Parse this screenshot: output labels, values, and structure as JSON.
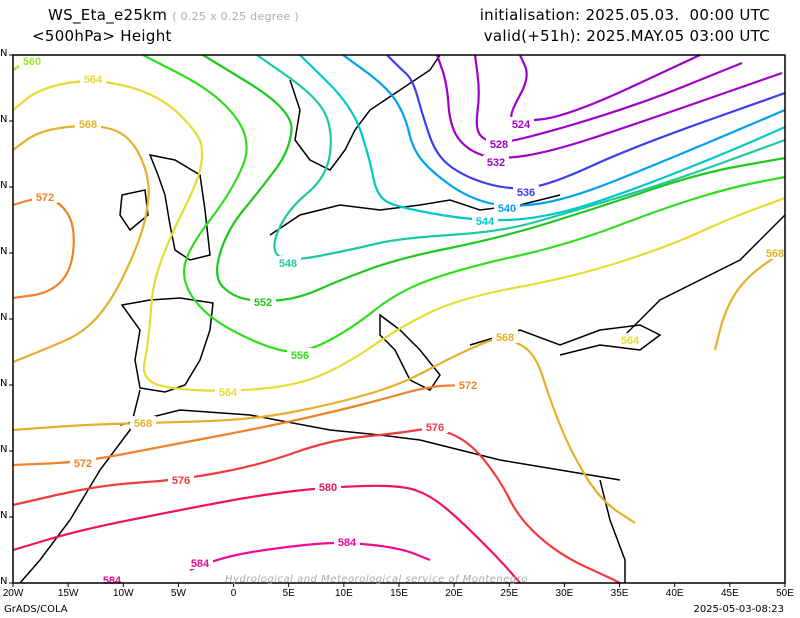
{
  "header": {
    "model": "WS_Eta_e25km",
    "resolution": "( 0.25 x 0.25 degree )",
    "field": "<500hPa> Height",
    "init": "initialisation: 2025.05.03.  00:00 UTC",
    "valid": "valid(+51h): 2025.MAY.05 03:00 UTC"
  },
  "axes": {
    "lon_labels": [
      "20W",
      "15W",
      "10W",
      "5W",
      "0",
      "5E",
      "10E",
      "15E",
      "20E",
      "25E",
      "30E",
      "35E",
      "40E",
      "45E",
      "50E"
    ],
    "lat_labels": [
      "N",
      "N",
      "N",
      "N",
      "N",
      "N",
      "N",
      "N",
      "N"
    ]
  },
  "contours": [
    {
      "value": "560",
      "color": "#a0e632"
    },
    {
      "value": "564",
      "color": "#e6dc32"
    },
    {
      "value": "568",
      "color": "#e6af2d"
    },
    {
      "value": "572",
      "color": "#f08228"
    },
    {
      "value": "576",
      "color": "#f03c3c"
    },
    {
      "value": "580",
      "color": "#f0145a"
    },
    {
      "value": "584",
      "color": "#f00a96"
    },
    {
      "value": "556",
      "color": "#32dc1e"
    },
    {
      "value": "552",
      "color": "#1ec81e"
    },
    {
      "value": "548",
      "color": "#1ec8a0"
    },
    {
      "value": "544",
      "color": "#00c8c8"
    },
    {
      "value": "540",
      "color": "#00a0f0"
    },
    {
      "value": "536",
      "color": "#3c3cf0"
    },
    {
      "value": "532",
      "color": "#a000c8"
    },
    {
      "value": "528",
      "color": "#a000c8"
    },
    {
      "value": "524",
      "color": "#a000c8"
    }
  ],
  "footer": {
    "left": "GrADS/COLA",
    "right": "2025-05-03-08:23",
    "watermark": "Hydrological and Meteorological service of Montenegro"
  }
}
